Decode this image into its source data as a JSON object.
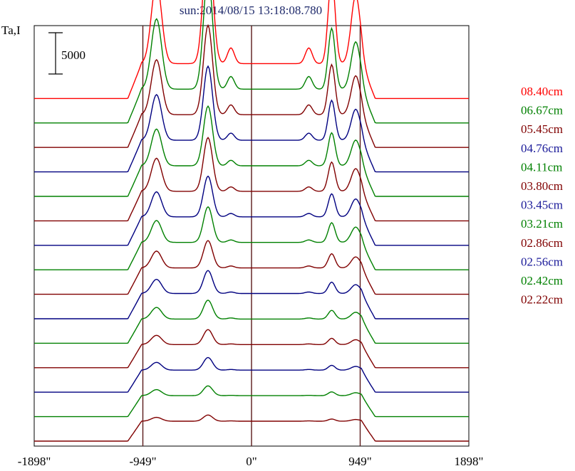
{
  "chart_data": {
    "type": "line",
    "title": "sun:2014/08/15 13:18:08.780",
    "ylabel": "Ta,I",
    "scale_bar_label": "5000",
    "x_tick_labels": [
      "-1898\"",
      "-949\"",
      "0\"",
      "949\"",
      "1898\""
    ],
    "x_ticks": [
      -1898,
      -949,
      0,
      949,
      1898
    ],
    "xlim": [
      -1898,
      1898
    ],
    "vertical_lines": [
      -949,
      0,
      949
    ],
    "grid": false,
    "legend_placement": "right",
    "series": [
      {
        "name": "08.40cm",
        "color": "#ff0000",
        "base": 0,
        "a": 1.45,
        "b": 1.4,
        "c": 0.3
      },
      {
        "name": "06.67cm",
        "color": "#008000",
        "base": 0,
        "a": 1.3,
        "b": 1.0,
        "c": 0.25
      },
      {
        "name": "05.45cm",
        "color": "#800000",
        "base": 0,
        "a": 1.05,
        "b": 0.85,
        "c": 0.2
      },
      {
        "name": "04.76cm",
        "color": "#000080",
        "base": 0,
        "a": 0.9,
        "b": 0.7,
        "c": 0.15
      },
      {
        "name": "04.11cm",
        "color": "#008000",
        "base": 0,
        "a": 0.75,
        "b": 0.6,
        "c": 0.12
      },
      {
        "name": "03.80cm",
        "color": "#800000",
        "base": 0,
        "a": 0.7,
        "b": 0.55,
        "c": 0.1
      },
      {
        "name": "03.45cm",
        "color": "#000080",
        "base": 0,
        "a": 0.55,
        "b": 0.45,
        "c": 0.08
      },
      {
        "name": "03.21cm",
        "color": "#008000",
        "base": 0,
        "a": 0.5,
        "b": 0.4,
        "c": 0.06
      },
      {
        "name": "02.86cm",
        "color": "#800000",
        "base": 0,
        "a": 0.4,
        "b": 0.3,
        "c": 0.05
      },
      {
        "name": "02.56cm",
        "color": "#000080",
        "base": 0,
        "a": 0.35,
        "b": 0.25,
        "c": 0.04
      },
      {
        "name": "02.42cm",
        "color": "#008000",
        "base": 0,
        "a": 0.3,
        "b": 0.2,
        "c": 0.03
      },
      {
        "name": "02.22cm",
        "color": "#800000",
        "base": 0,
        "a": 0.25,
        "b": 0.15,
        "c": 0.02
      },
      {
        "name": "",
        "color": "#000080",
        "base": 0,
        "a": 0.22,
        "b": 0.12,
        "c": 0.02
      },
      {
        "name": "",
        "color": "#008000",
        "base": 0,
        "a": 0.18,
        "b": 0.1,
        "c": 0.01
      },
      {
        "name": "",
        "color": "#800000",
        "base": 0,
        "a": 0.12,
        "b": 0.06,
        "c": 0.01
      }
    ]
  }
}
